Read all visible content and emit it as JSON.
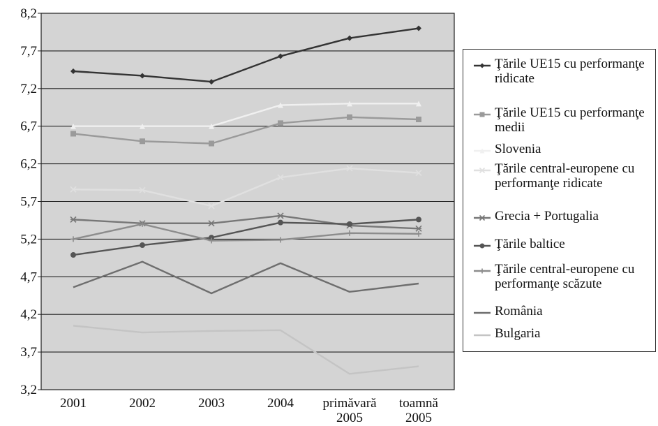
{
  "chart_data": {
    "type": "line",
    "categories": [
      "2001",
      "2002",
      "2003",
      "2004",
      "primăvară\n2005",
      "toamnă\n2005"
    ],
    "ylim": [
      3.2,
      8.2
    ],
    "yticks": [
      "8,2",
      "7,7",
      "7,2",
      "6,7",
      "6,2",
      "5,7",
      "5,2",
      "4,7",
      "4,2",
      "3,7",
      "3,2"
    ],
    "plot_background": "#d4d4d4",
    "grid": "horizontal",
    "legend_position": "right",
    "series": [
      {
        "name": "Ţările UE15 cu performanţe ridicate",
        "color": "#333333",
        "marker": "diamond",
        "values": [
          7.43,
          7.37,
          7.29,
          7.63,
          7.87,
          8.0
        ]
      },
      {
        "name": "Ţările UE15 cu performanţe medii",
        "color": "#9a9a9a",
        "marker": "square",
        "values": [
          6.6,
          6.5,
          6.47,
          6.74,
          6.82,
          6.79
        ]
      },
      {
        "name": "Slovenia",
        "color": "#f0f0f0",
        "marker": "triangle",
        "values": [
          6.7,
          6.7,
          6.7,
          6.98,
          7.0,
          7.0
        ]
      },
      {
        "name": "Ţările central-europene cu performanţe ridicate",
        "color": "#e0e0e0",
        "marker": "x",
        "values": [
          5.86,
          5.85,
          5.64,
          6.02,
          6.14,
          6.08
        ]
      },
      {
        "name": "Grecia + Portugalia",
        "color": "#777777",
        "marker": "star",
        "values": [
          5.46,
          5.41,
          5.41,
          5.51,
          5.38,
          5.34
        ]
      },
      {
        "name": "Ţările baltice",
        "color": "#555555",
        "marker": "circle",
        "values": [
          4.99,
          5.12,
          5.22,
          5.42,
          5.4,
          5.46
        ]
      },
      {
        "name": "Ţările central-europene cu performanţe scăzute",
        "color": "#8c8c8c",
        "marker": "plus",
        "values": [
          5.2,
          5.4,
          5.18,
          5.19,
          5.28,
          5.27
        ]
      },
      {
        "name": "România",
        "color": "#6e6e6e",
        "marker": "none",
        "values": [
          4.56,
          4.9,
          4.48,
          4.88,
          4.5,
          4.61
        ]
      },
      {
        "name": "Bulgaria",
        "color": "#c4c4c4",
        "marker": "none",
        "values": [
          4.05,
          3.96,
          3.98,
          3.99,
          3.41,
          3.51
        ]
      }
    ]
  }
}
